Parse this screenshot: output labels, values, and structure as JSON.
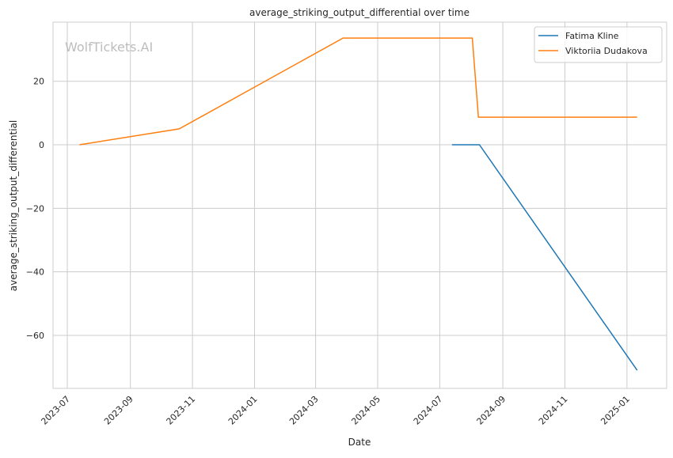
{
  "chart_data": {
    "type": "line",
    "title": "average_striking_output_differential over time",
    "xlabel": "Date",
    "ylabel": "average_striking_output_differential",
    "watermark": "WolfTickets.AI",
    "xlim": [
      "2023-06-17",
      "2025-02-09"
    ],
    "ylim": [
      -76.7,
      38.6
    ],
    "grid": true,
    "legend_position": "top-right",
    "x_ticks": [
      "2023-07-01",
      "2023-09-01",
      "2023-11-01",
      "2024-01-01",
      "2024-03-01",
      "2024-05-01",
      "2024-07-01",
      "2024-09-01",
      "2024-11-01",
      "2025-01-01"
    ],
    "x_tick_labels": [
      "2023-07",
      "2023-09",
      "2023-11",
      "2024-01",
      "2024-03",
      "2024-05",
      "2024-07",
      "2024-09",
      "2024-11",
      "2025-01"
    ],
    "y_ticks": [
      20,
      0,
      -20,
      -40,
      -60
    ],
    "y_tick_labels": [
      "20",
      "0",
      "−20",
      "−40",
      "−60"
    ],
    "series": [
      {
        "name": "Fatima Kline",
        "color": "#1f77b4",
        "x": [
          "2024-07-13",
          "2024-08-09",
          "2025-01-11"
        ],
        "values": [
          0,
          0,
          -71.0
        ]
      },
      {
        "name": "Viktoriia Dudakova",
        "color": "#ff7f0e",
        "x": [
          "2023-07-13",
          "2023-10-19",
          "2024-03-28",
          "2024-08-02",
          "2024-08-08",
          "2025-01-11"
        ],
        "values": [
          0,
          5.0,
          33.6,
          33.6,
          8.7,
          8.7
        ]
      }
    ]
  }
}
